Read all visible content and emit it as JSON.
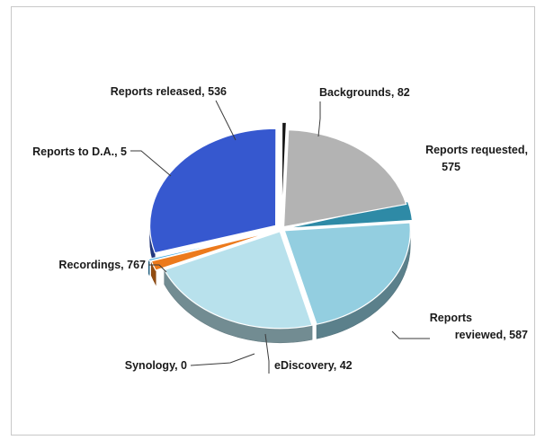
{
  "chart_data": {
    "type": "pie",
    "style": "3d-exploded",
    "title": "",
    "legend": "none",
    "slices": [
      {
        "label": "Backgrounds",
        "value": 82,
        "color": "#2e8aa6",
        "display": "Backgrounds, 82"
      },
      {
        "label": "Reports requested",
        "value": 575,
        "color": "#93cee0",
        "display": [
          "Reports requested,",
          "575"
        ]
      },
      {
        "label": "Reports reviewed",
        "value": 587,
        "color": "#b8e1ec",
        "display": [
          "Reports",
          "reviewed, 587"
        ]
      },
      {
        "label": "eDiscovery",
        "value": 42,
        "color": "#ec7a1c",
        "display": "eDiscovery, 42"
      },
      {
        "label": "Synology",
        "value": 0,
        "color": "#39a6e0",
        "display": "Synology, 0"
      },
      {
        "label": "Recordings",
        "value": 767,
        "color": "#3658cf",
        "display": "Recordings, 767"
      },
      {
        "label": "Reports to D.A.",
        "value": 5,
        "color": "#151515",
        "display": "Reports to D.A., 5"
      },
      {
        "label": "Reports released",
        "value": 536,
        "color": "#b3b3b3",
        "display": "Reports released, 536"
      }
    ]
  }
}
